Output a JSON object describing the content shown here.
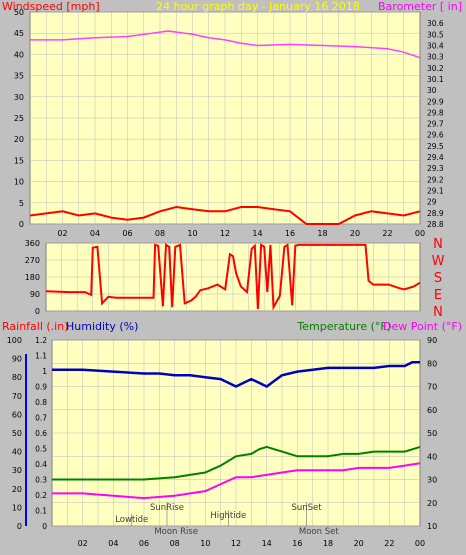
{
  "header": {
    "left_label": "Windspeed [mph]",
    "center_title": "24 hour graph day - January 16 2018",
    "right_label": "Barometer [ in]"
  },
  "direction_labels": [
    "N",
    "W",
    "S",
    "E",
    "N"
  ],
  "bottom_header": {
    "rain_label": "Rainfall (.in)",
    "humidity_label": "Humidity (%)",
    "temp_label": "Temperature (°F)",
    "dew_label": "Dew Point (°F)"
  },
  "annotations": [
    {
      "text": "SunRise",
      "hour": 7.5
    },
    {
      "text": "Lowtide",
      "hour": 5.2
    },
    {
      "text": "Moon Rise",
      "hour": 8.1
    },
    {
      "text": "Hightide",
      "hour": 11.5
    },
    {
      "text": "SunSet",
      "hour": 16.6
    },
    {
      "text": "Moon Set",
      "hour": 17.4
    }
  ],
  "x_ticks": [
    "02",
    "04",
    "06",
    "08",
    "10",
    "12",
    "14",
    "16",
    "18",
    "20",
    "22",
    "00"
  ],
  "colors": {
    "background": "#c0c0c0",
    "plot": "#ffffc0",
    "wind": "#ff0000",
    "gust": "#0000ff",
    "barometer": "#ff40ff",
    "direction": "#ff0000",
    "humidity": "#0000c0",
    "temperature": "#008000",
    "dewpoint": "#ff00ff",
    "title": "#ffff00"
  },
  "chart_data": [
    {
      "type": "line",
      "name": "wind-barometer",
      "x_range": [
        0,
        24
      ],
      "left_axis": {
        "label": "Windspeed [mph]",
        "range": [
          0,
          50
        ],
        "ticks": [
          0,
          5,
          10,
          15,
          20,
          25,
          30,
          35,
          40,
          45,
          50
        ]
      },
      "right_axis": {
        "label": "Barometer [ in]",
        "range": [
          28.8,
          30.7
        ],
        "ticks": [
          "28.8",
          "28.9",
          "29",
          "29.1",
          "29.2",
          "29.3",
          "29.4",
          "29.5",
          "29.6",
          "29.7",
          "29.8",
          "29.9",
          "30",
          "30.1",
          "30.2",
          "30.3",
          "30.4",
          "30.5",
          "30.6"
        ]
      },
      "series": [
        {
          "name": "Barometer",
          "axis": "right",
          "x": [
            0,
            2,
            4,
            6,
            7.5,
            8.5,
            10,
            11,
            12,
            13,
            14,
            16,
            18,
            20,
            22,
            23,
            24
          ],
          "y": [
            30.45,
            30.45,
            30.47,
            30.48,
            30.51,
            30.53,
            30.5,
            30.47,
            30.45,
            30.42,
            30.4,
            30.41,
            30.4,
            30.39,
            30.37,
            30.34,
            30.29
          ]
        },
        {
          "name": "Wind",
          "axis": "left",
          "x": [
            0,
            1,
            2,
            3,
            4,
            5,
            6,
            7,
            8,
            9,
            10,
            11,
            12,
            13,
            14,
            15,
            16,
            17,
            18,
            19,
            20,
            21,
            22,
            23,
            24
          ],
          "y": [
            2,
            2.5,
            3,
            2,
            2.5,
            1.5,
            1,
            1.5,
            3,
            4,
            3.5,
            3,
            3,
            4,
            4,
            3.5,
            3,
            0,
            0,
            0,
            2,
            3,
            2.5,
            2,
            3
          ]
        }
      ]
    },
    {
      "type": "line",
      "name": "wind-direction",
      "x_range": [
        0,
        24
      ],
      "y_range": [
        0,
        360
      ],
      "y_ticks": [
        0,
        90,
        180,
        270,
        360
      ],
      "series": [
        {
          "name": "Direction",
          "x": [
            0,
            1.5,
            2.5,
            2.9,
            3.0,
            3.3,
            3.6,
            4.0,
            4.5,
            6.0,
            6.9,
            7.0,
            7.2,
            7.5,
            7.7,
            7.9,
            8.1,
            8.3,
            8.6,
            8.9,
            9.3,
            9.6,
            9.9,
            10.4,
            11.0,
            11.5,
            11.8,
            12.0,
            12.2,
            12.5,
            12.9,
            13.2,
            13.4,
            13.6,
            13.8,
            14.0,
            14.2,
            14.4,
            14.6,
            15.0,
            15.3,
            15.5,
            15.8,
            16.0,
            16.2,
            16.5,
            19.0,
            20.5,
            20.7,
            21.0,
            22.0,
            22.7,
            23.0,
            23.6,
            24.0
          ],
          "y": [
            105,
            100,
            100,
            85,
            335,
            340,
            40,
            75,
            70,
            70,
            70,
            350,
            345,
            25,
            350,
            340,
            20,
            340,
            350,
            40,
            55,
            75,
            110,
            120,
            140,
            115,
            300,
            290,
            200,
            130,
            100,
            330,
            345,
            10,
            350,
            340,
            100,
            350,
            20,
            80,
            340,
            350,
            30,
            345,
            350,
            350,
            350,
            350,
            160,
            140,
            140,
            120,
            115,
            130,
            150
          ]
        }
      ]
    },
    {
      "type": "line",
      "name": "temp-humidity",
      "x_range": [
        0,
        24
      ],
      "humidity_axis": {
        "label": "Humidity (%)",
        "range": [
          0,
          100
        ],
        "ticks": [
          0,
          10,
          20,
          30,
          40,
          50,
          60,
          70,
          80,
          90,
          100
        ]
      },
      "rain_axis": {
        "label": "Rainfall (.in)",
        "range": [
          0,
          1.2
        ],
        "ticks": [
          "0",
          "0.1",
          "0.2",
          "0.3",
          "0.4",
          "0.5",
          "0.6",
          "0.7",
          "0.8",
          "0.9",
          "1",
          "1.1",
          "1.2"
        ]
      },
      "temp_axis": {
        "label": "Temperature (°F)",
        "range": [
          10,
          90
        ],
        "ticks": [
          10,
          20,
          30,
          40,
          50,
          60,
          70,
          80,
          90
        ]
      },
      "series": [
        {
          "name": "Humidity",
          "axis": "humidity",
          "x": [
            0,
            2,
            4,
            6,
            7,
            8,
            9,
            10,
            11,
            11.5,
            12,
            12.5,
            13,
            13.5,
            14,
            14.5,
            15,
            16,
            17,
            18,
            19,
            20,
            21,
            22,
            23,
            23.5,
            24
          ],
          "y": [
            84,
            84,
            83,
            82,
            82,
            81,
            81,
            80,
            79,
            77,
            75,
            77,
            79,
            77,
            75,
            78,
            81,
            83,
            84,
            85,
            85,
            85,
            85,
            86,
            86,
            88,
            88
          ]
        },
        {
          "name": "Temperature",
          "axis": "temp",
          "x": [
            0,
            2,
            4,
            6,
            8,
            9,
            10,
            11,
            12,
            13,
            13.5,
            14,
            15,
            16,
            17,
            18,
            19,
            20,
            21,
            22,
            23,
            23.5,
            24
          ],
          "y": [
            30,
            30,
            30,
            30,
            31,
            32,
            33,
            36,
            40,
            41,
            43,
            44,
            42,
            40,
            40,
            40,
            41,
            41,
            42,
            42,
            42,
            43,
            44
          ]
        },
        {
          "name": "Dew Point",
          "axis": "temp",
          "x": [
            0,
            2,
            4,
            6,
            8,
            9,
            10,
            11,
            12,
            13,
            14,
            15,
            16,
            17,
            18,
            19,
            20,
            21,
            22,
            23,
            24
          ],
          "y": [
            24,
            24,
            23,
            22,
            23,
            24,
            25,
            28,
            31,
            31,
            32,
            33,
            34,
            34,
            34,
            34,
            35,
            35,
            35,
            36,
            37
          ]
        }
      ]
    }
  ]
}
